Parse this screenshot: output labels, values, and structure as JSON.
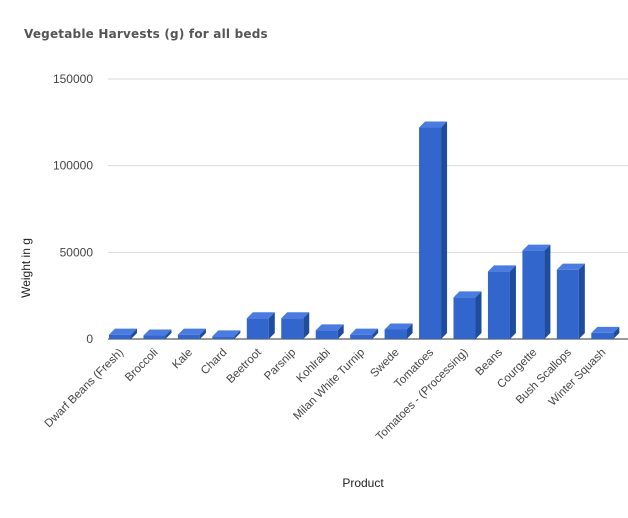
{
  "chart_data": {
    "type": "bar",
    "title": "Vegetable Harvests (g) for all beds",
    "xlabel": "Product",
    "ylabel": "Weight in g",
    "ylim": [
      0,
      150000
    ],
    "yticks": [
      0,
      50000,
      100000,
      150000
    ],
    "grid": true,
    "legend": "none",
    "bar_color": "#3366cc",
    "categories": [
      "Dwarf Beans (Fresh)",
      "Broccoli",
      "Kale",
      "Chard",
      "Beetroot",
      "Parsnip",
      "Kohlrabi",
      "Milan White Turnip",
      "Swede",
      "Tomatoes",
      "Tomatoes - (Processing)",
      "Beans",
      "Courgette",
      "Bush Scallops",
      "Winter Squash"
    ],
    "values": [
      2500,
      2000,
      2500,
      1500,
      12000,
      12000,
      5000,
      2500,
      5500,
      122000,
      24000,
      39000,
      51000,
      40000,
      3500
    ]
  }
}
